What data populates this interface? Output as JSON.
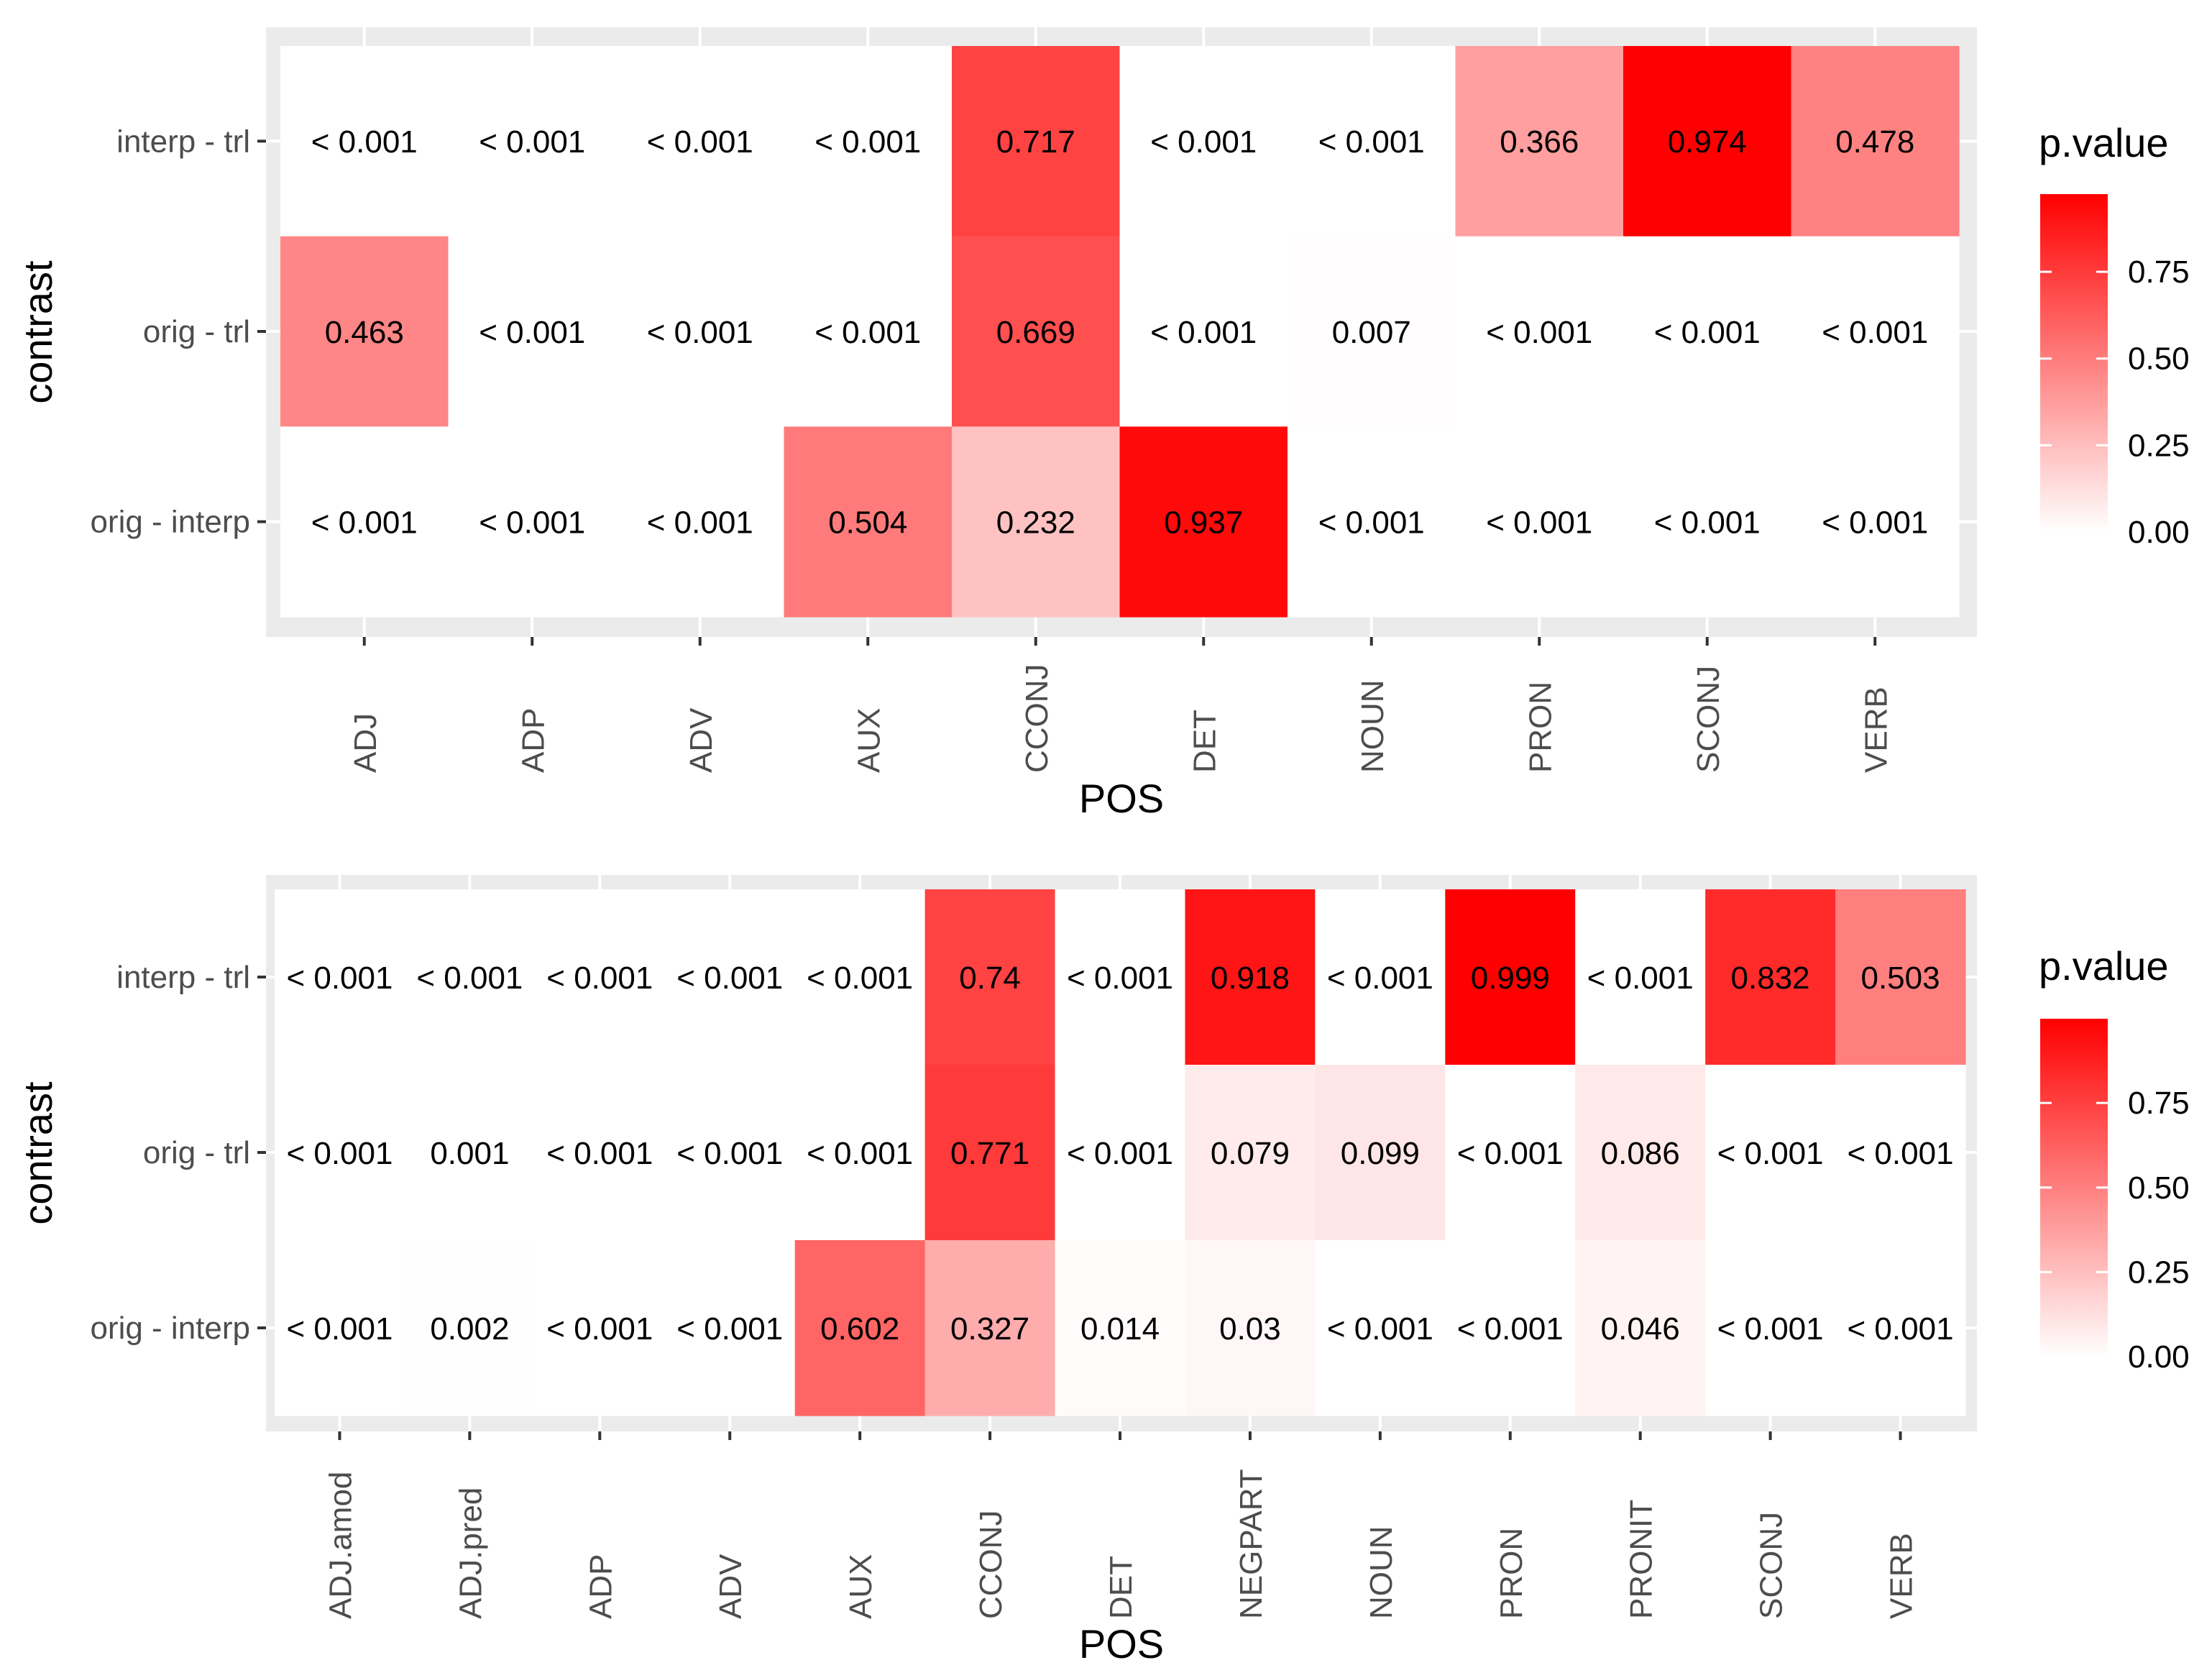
{
  "chart_data": [
    {
      "type": "heatmap",
      "xlabel": "POS",
      "ylabel": "contrast",
      "x_categories": [
        "ADJ",
        "ADP",
        "ADV",
        "AUX",
        "CCONJ",
        "DET",
        "NOUN",
        "PRON",
        "SCONJ",
        "VERB"
      ],
      "y_categories": [
        "interp - trl",
        "orig - trl",
        "orig - interp"
      ],
      "values": [
        [
          0.0,
          0.0,
          0.0,
          0.0,
          0.717,
          0.0,
          0.0,
          0.366,
          0.974,
          0.478
        ],
        [
          0.463,
          0.0,
          0.0,
          0.0,
          0.669,
          0.0,
          0.007,
          0.0,
          0.0,
          0.0
        ],
        [
          0.0,
          0.0,
          0.0,
          0.504,
          0.232,
          0.937,
          0.0,
          0.0,
          0.0,
          0.0
        ]
      ],
      "labels": [
        [
          "< 0.001",
          "< 0.001",
          "< 0.001",
          "< 0.001",
          "0.717",
          "< 0.001",
          "< 0.001",
          "0.366",
          "0.974",
          "0.478"
        ],
        [
          "0.463",
          "< 0.001",
          "< 0.001",
          "< 0.001",
          "0.669",
          "< 0.001",
          "0.007",
          "< 0.001",
          "< 0.001",
          "< 0.001"
        ],
        [
          "< 0.001",
          "< 0.001",
          "< 0.001",
          "0.504",
          "0.232",
          "0.937",
          "< 0.001",
          "< 0.001",
          "< 0.001",
          "< 0.001"
        ]
      ],
      "legend": {
        "title": "p.value",
        "placement": "right",
        "breaks": [
          "0.00",
          "0.25",
          "0.50",
          "0.75"
        ],
        "limits": [
          0,
          0.974
        ]
      },
      "colors": {
        "low": "#ffffff",
        "high": "#ff0000",
        "panel": "#ebebeb"
      }
    },
    {
      "type": "heatmap",
      "xlabel": "POS",
      "ylabel": "contrast",
      "x_categories": [
        "ADJ.amod",
        "ADJ.pred",
        "ADP",
        "ADV",
        "AUX",
        "CCONJ",
        "DET",
        "NEGPART",
        "NOUN",
        "PRON",
        "PRONIT",
        "SCONJ",
        "VERB"
      ],
      "y_categories": [
        "interp - trl",
        "orig - trl",
        "orig - interp"
      ],
      "values": [
        [
          0.0,
          0.0,
          0.0,
          0.0,
          0.0,
          0.74,
          0.0,
          0.918,
          0.0,
          0.999,
          0.0,
          0.832,
          0.503
        ],
        [
          0.0,
          0.001,
          0.0,
          0.0,
          0.0,
          0.771,
          0.0,
          0.079,
          0.099,
          0.0,
          0.086,
          0.0,
          0.0
        ],
        [
          0.0,
          0.002,
          0.0,
          0.0,
          0.602,
          0.327,
          0.014,
          0.03,
          0.0,
          0.0,
          0.046,
          0.0,
          0.0
        ]
      ],
      "labels": [
        [
          "< 0.001",
          "< 0.001",
          "< 0.001",
          "< 0.001",
          "< 0.001",
          "0.74",
          "< 0.001",
          "0.918",
          "< 0.001",
          "0.999",
          "< 0.001",
          "0.832",
          "0.503"
        ],
        [
          "< 0.001",
          "0.001",
          "< 0.001",
          "< 0.001",
          "< 0.001",
          "0.771",
          "< 0.001",
          "0.079",
          "0.099",
          "< 0.001",
          "0.086",
          "< 0.001",
          "< 0.001"
        ],
        [
          "< 0.001",
          "0.002",
          "< 0.001",
          "< 0.001",
          "0.602",
          "0.327",
          "0.014",
          "0.03",
          "< 0.001",
          "< 0.001",
          "0.046",
          "< 0.001",
          "< 0.001"
        ]
      ],
      "legend": {
        "title": "p.value",
        "placement": "right",
        "breaks": [
          "0.00",
          "0.25",
          "0.50",
          "0.75"
        ],
        "limits": [
          0,
          0.999
        ]
      },
      "colors": {
        "low": "#ffffff",
        "high": "#ff0000",
        "panel": "#ebebeb"
      }
    }
  ]
}
